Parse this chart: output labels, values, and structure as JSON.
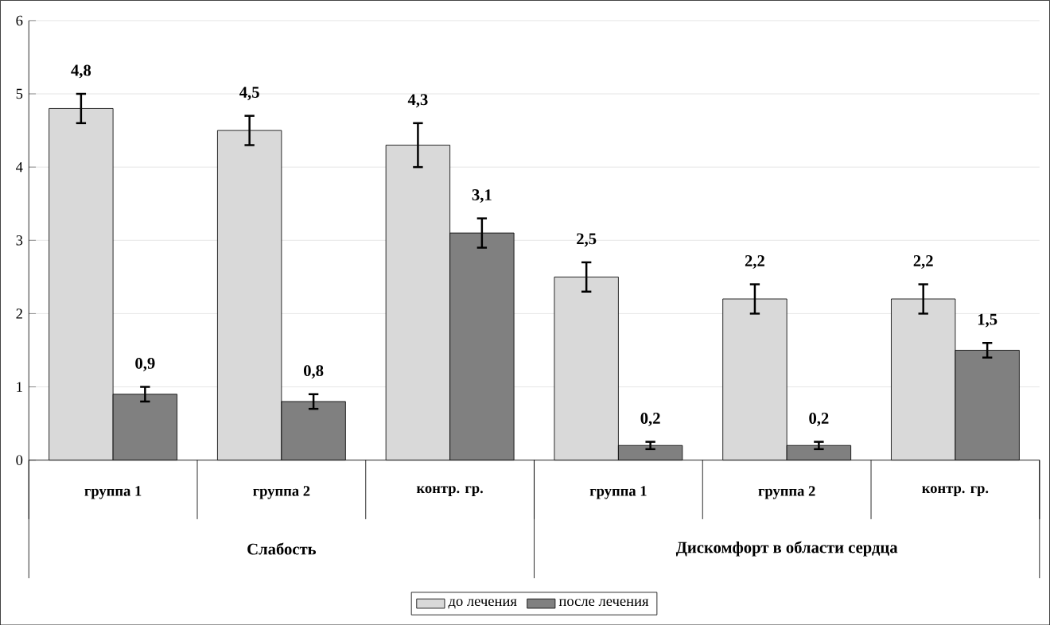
{
  "chart_data": {
    "type": "bar",
    "categories": [
      "группа 1",
      "группа 2",
      "контр. гр.",
      "группа 1",
      "группа 2",
      "контр. гр."
    ],
    "series": [
      {
        "name": "до лечения",
        "color": "#d9d9d9",
        "values": [
          4.8,
          4.5,
          4.3,
          2.5,
          2.2,
          2.2
        ],
        "errors": [
          0.2,
          0.2,
          0.3,
          0.2,
          0.2,
          0.2
        ],
        "value_labels": [
          "4,8",
          "4,5",
          "4,3",
          "2,5",
          "2,2",
          "2,2"
        ]
      },
      {
        "name": "после лечения",
        "color": "#808080",
        "values": [
          0.9,
          0.8,
          3.1,
          0.2,
          0.2,
          1.5
        ],
        "errors": [
          0.1,
          0.1,
          0.2,
          0.05,
          0.05,
          0.1
        ],
        "value_labels": [
          "0,9",
          "0,8",
          "3,1",
          "0,2",
          "0,2",
          "1,5"
        ]
      }
    ],
    "annotations": [
      "Слабость",
      "Дискомфорт в области сердца"
    ],
    "ylim": [
      0,
      6
    ],
    "yticks": [
      0,
      1,
      2,
      3,
      4,
      5,
      6
    ],
    "grid": "y",
    "legend": "bottom"
  }
}
